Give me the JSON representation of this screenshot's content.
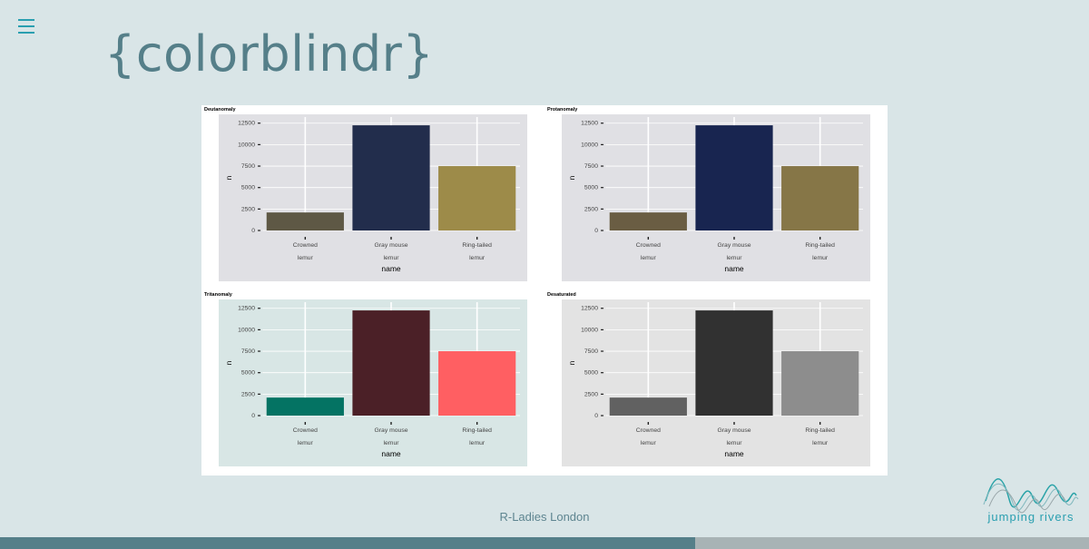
{
  "slide": {
    "title": "{colorblindr}",
    "footer": "R-Ladies London",
    "logo_text": "jumping rivers"
  },
  "chart_data": [
    {
      "type": "bar",
      "title": "Deutanomaly",
      "categories": [
        [
          "Crowned",
          "lemur"
        ],
        [
          "Gray mouse",
          "lemur"
        ],
        [
          "Ring-tailed",
          "lemur"
        ]
      ],
      "values": [
        2100,
        12250,
        7500
      ],
      "bar_colors": [
        "#5e5845",
        "#222d4c",
        "#9d8b49"
      ],
      "panel_background": "#e0e0e4",
      "xlabel": "name",
      "ylabel": "n",
      "ylim": [
        0,
        13000
      ],
      "yticks": [
        0,
        2500,
        5000,
        7500,
        10000,
        12500
      ],
      "ytick_labels": [
        "0",
        "2500",
        "5000",
        "7500",
        "10000",
        "12500"
      ]
    },
    {
      "type": "bar",
      "title": "Protanomaly",
      "categories": [
        [
          "Crowned",
          "lemur"
        ],
        [
          "Gray mouse",
          "lemur"
        ],
        [
          "Ring-tailed",
          "lemur"
        ]
      ],
      "values": [
        2100,
        12250,
        7500
      ],
      "bar_colors": [
        "#6a5d43",
        "#182550",
        "#867647"
      ],
      "panel_background": "#e0e0e4",
      "xlabel": "name",
      "ylabel": "n",
      "ylim": [
        0,
        13000
      ],
      "yticks": [
        0,
        2500,
        5000,
        7500,
        10000,
        12500
      ],
      "ytick_labels": [
        "0",
        "2500",
        "5000",
        "7500",
        "10000",
        "12500"
      ]
    },
    {
      "type": "bar",
      "title": "Tritanomaly",
      "categories": [
        [
          "Crowned",
          "lemur"
        ],
        [
          "Gray mouse",
          "lemur"
        ],
        [
          "Ring-tailed",
          "lemur"
        ]
      ],
      "values": [
        2100,
        12250,
        7500
      ],
      "bar_colors": [
        "#047363",
        "#4b2027",
        "#ff5f62"
      ],
      "panel_background": "#d8e6e5",
      "xlabel": "name",
      "ylabel": "n",
      "ylim": [
        0,
        13000
      ],
      "yticks": [
        0,
        2500,
        5000,
        7500,
        10000,
        12500
      ],
      "ytick_labels": [
        "0",
        "2500",
        "5000",
        "7500",
        "10000",
        "12500"
      ]
    },
    {
      "type": "bar",
      "title": "Desaturated",
      "categories": [
        [
          "Crowned",
          "lemur"
        ],
        [
          "Gray mouse",
          "lemur"
        ],
        [
          "Ring-tailed",
          "lemur"
        ]
      ],
      "values": [
        2100,
        12250,
        7500
      ],
      "bar_colors": [
        "#616161",
        "#313131",
        "#8d8d8d"
      ],
      "panel_background": "#e3e3e3",
      "xlabel": "name",
      "ylabel": "n",
      "ylim": [
        0,
        13000
      ],
      "yticks": [
        0,
        2500,
        5000,
        7500,
        10000,
        12500
      ],
      "ytick_labels": [
        "0",
        "2500",
        "5000",
        "7500",
        "10000",
        "12500"
      ]
    }
  ]
}
